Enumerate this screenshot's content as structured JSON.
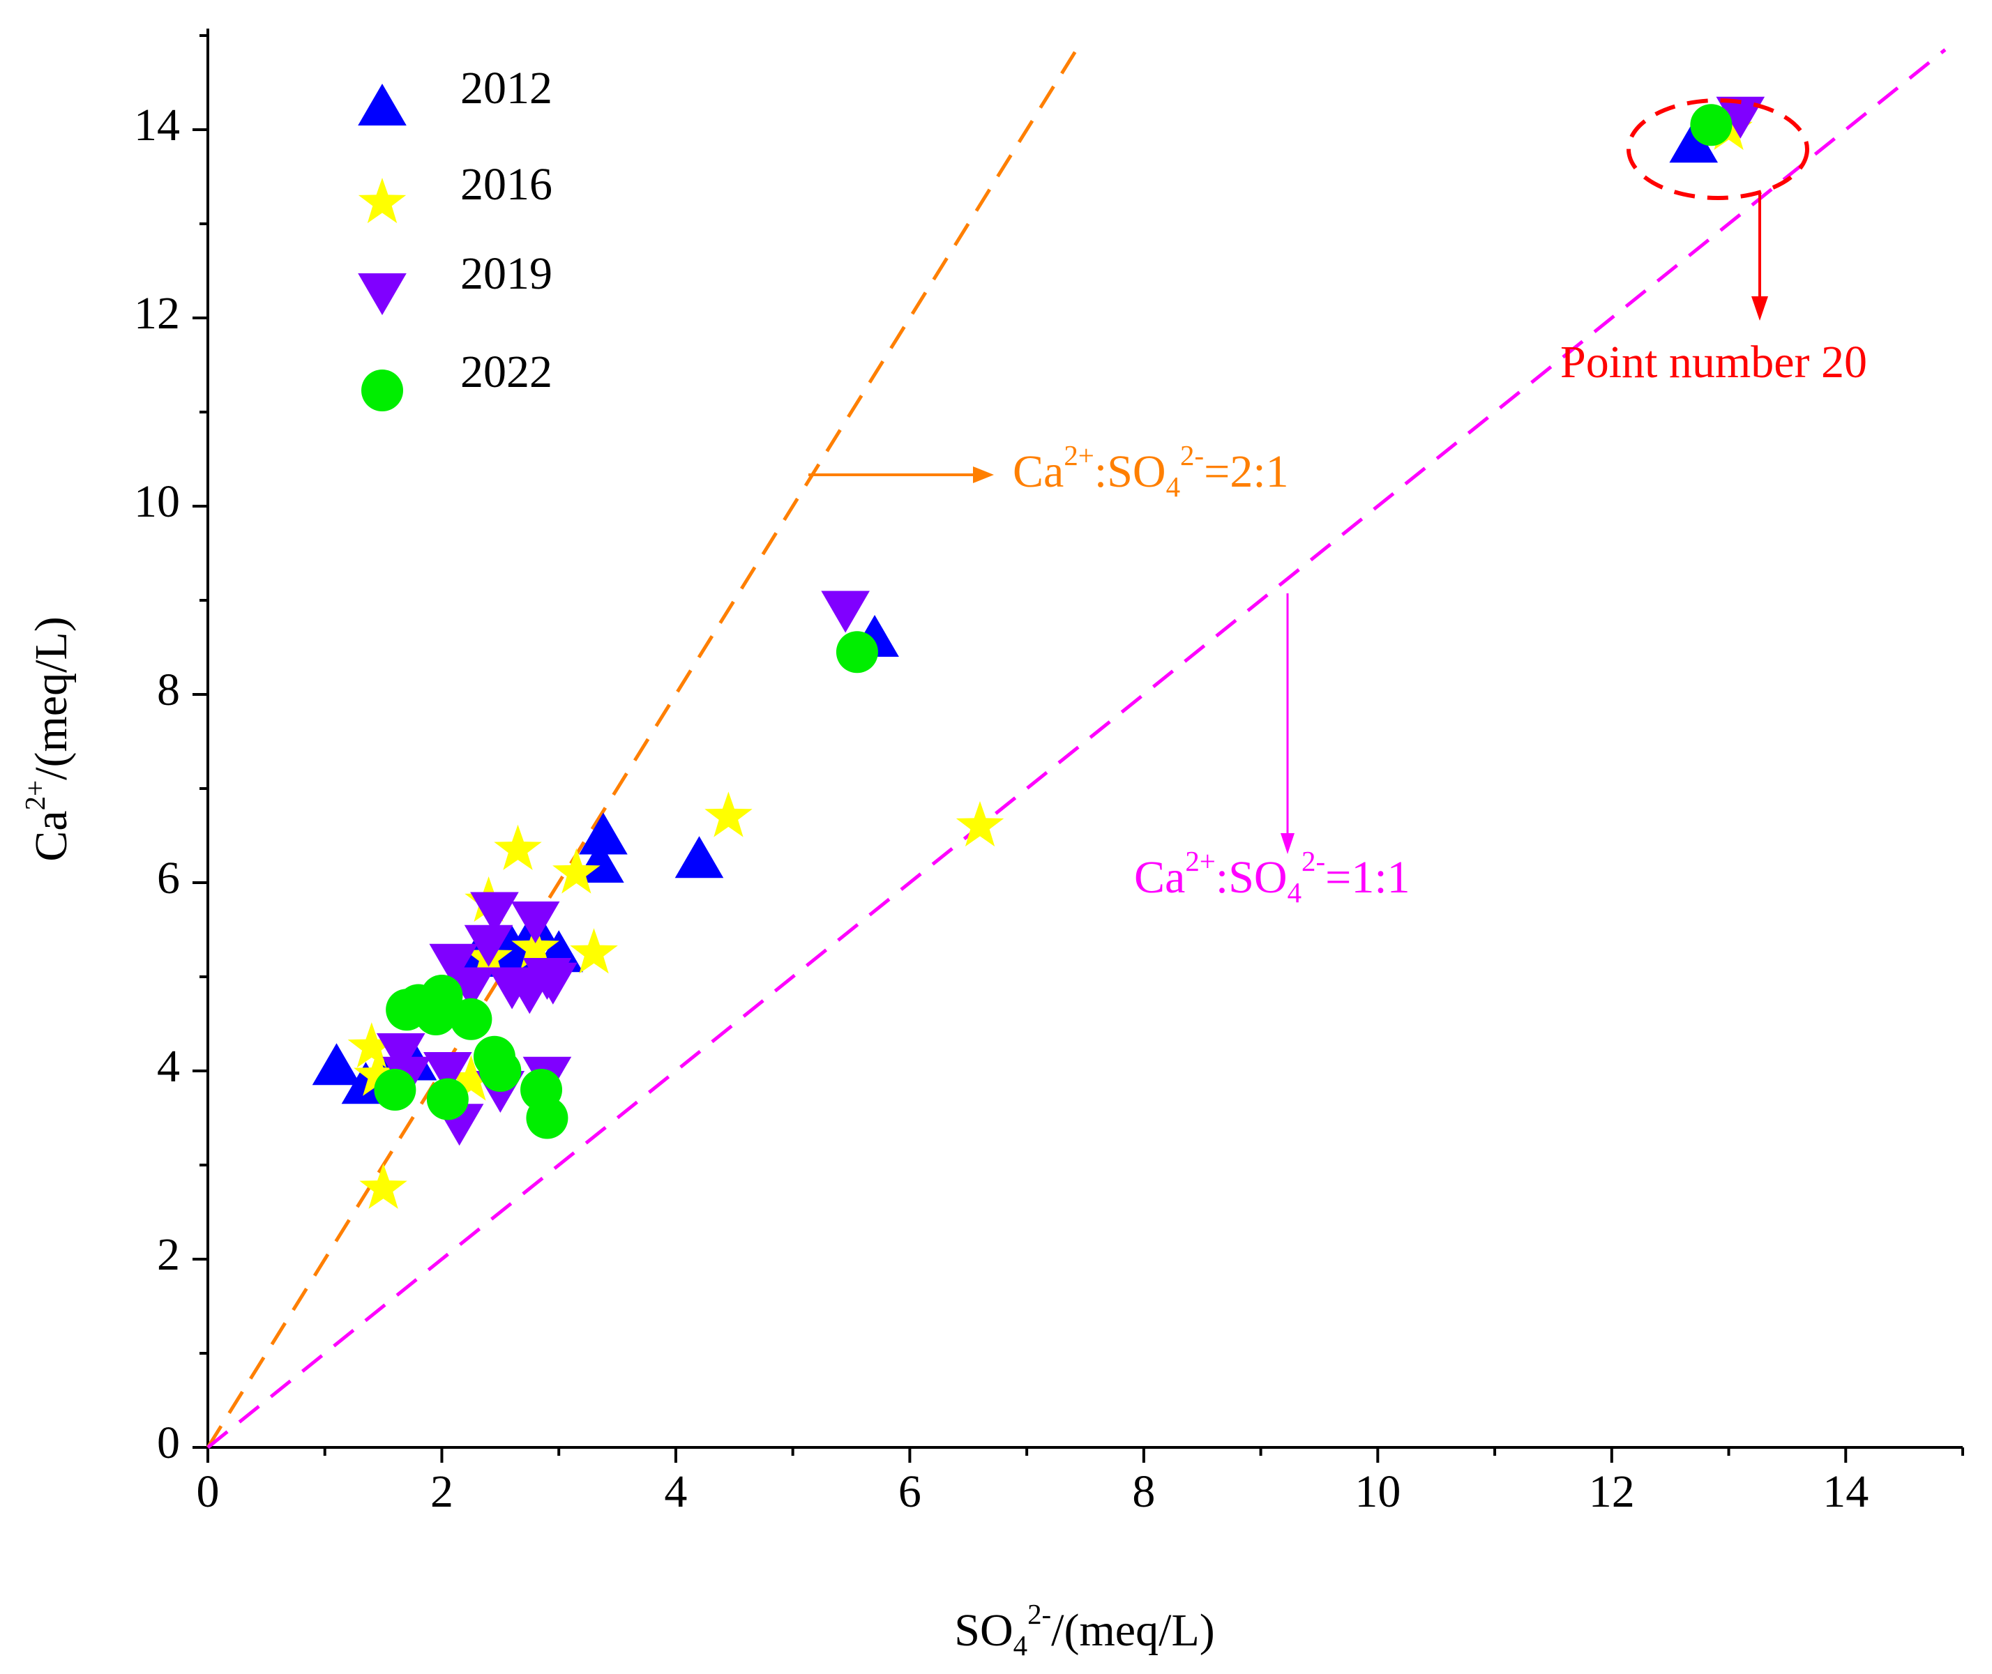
{
  "chart_data": {
    "type": "scatter",
    "xlabel": [
      "SO",
      "4",
      "2-",
      "/(meq/L)"
    ],
    "ylabel": [
      "Ca",
      "2+",
      "/(meq/L)"
    ],
    "xlim": [
      0,
      15
    ],
    "ylim": [
      0,
      15
    ],
    "xticks": [
      0,
      2,
      4,
      6,
      8,
      10,
      12,
      14
    ],
    "yticks": [
      0,
      2,
      4,
      6,
      8,
      10,
      12,
      14
    ],
    "legend": "upper left",
    "series": [
      {
        "name": "2012",
        "marker": "triangle-up",
        "color": "#0000ff",
        "x": [
          1.1,
          1.35,
          1.5,
          1.75,
          2.3,
          2.6,
          2.8,
          3.0,
          3.35,
          3.38,
          4.2,
          5.7,
          12.7
        ],
        "values": [
          4.05,
          3.85,
          3.9,
          4.1,
          5.2,
          5.3,
          5.5,
          5.25,
          6.2,
          6.5,
          6.25,
          8.6,
          13.85
        ]
      },
      {
        "name": "2016",
        "marker": "star",
        "color": "#ffff00",
        "x": [
          1.5,
          1.4,
          1.45,
          2.25,
          2.4,
          2.65,
          3.15,
          3.3,
          4.45,
          6.6,
          2.4,
          2.8,
          13.0
        ],
        "values": [
          2.75,
          4.25,
          3.95,
          3.9,
          5.8,
          6.35,
          6.1,
          5.25,
          6.7,
          6.6,
          5.2,
          5.3,
          14.0
        ]
      },
      {
        "name": "2019",
        "marker": "triangle-down",
        "color": "#8000ff",
        "x": [
          1.65,
          1.7,
          2.05,
          2.15,
          2.5,
          2.9,
          2.1,
          2.25,
          2.4,
          2.45,
          2.6,
          2.75,
          2.8,
          2.9,
          2.95,
          5.45,
          13.1
        ],
        "values": [
          4.2,
          3.95,
          4.0,
          3.45,
          3.8,
          3.95,
          5.15,
          4.9,
          5.35,
          5.7,
          4.9,
          4.85,
          5.6,
          5.0,
          4.95,
          8.9,
          14.15
        ]
      },
      {
        "name": "2022",
        "marker": "circle",
        "color": "#00ee00",
        "x": [
          1.6,
          1.7,
          1.8,
          1.95,
          2.0,
          2.05,
          2.25,
          2.45,
          2.5,
          2.85,
          2.9,
          5.55,
          12.85
        ],
        "values": [
          3.8,
          4.65,
          4.7,
          4.6,
          4.8,
          3.7,
          4.55,
          4.15,
          4.0,
          3.8,
          3.5,
          8.45,
          14.05
        ]
      }
    ],
    "reference_lines": [
      {
        "slope": 2,
        "color": "#ff7f00",
        "label": [
          "Ca",
          "2+",
          ":SO",
          "4",
          "2-",
          "=2:1"
        ]
      },
      {
        "slope": 1,
        "color": "#ff00ff",
        "label": [
          "Ca",
          "2+",
          ":SO",
          "4",
          "2-",
          "=1:1"
        ]
      }
    ],
    "annotations": [
      {
        "text": "Point number 20",
        "color": "#ff0000"
      }
    ]
  }
}
